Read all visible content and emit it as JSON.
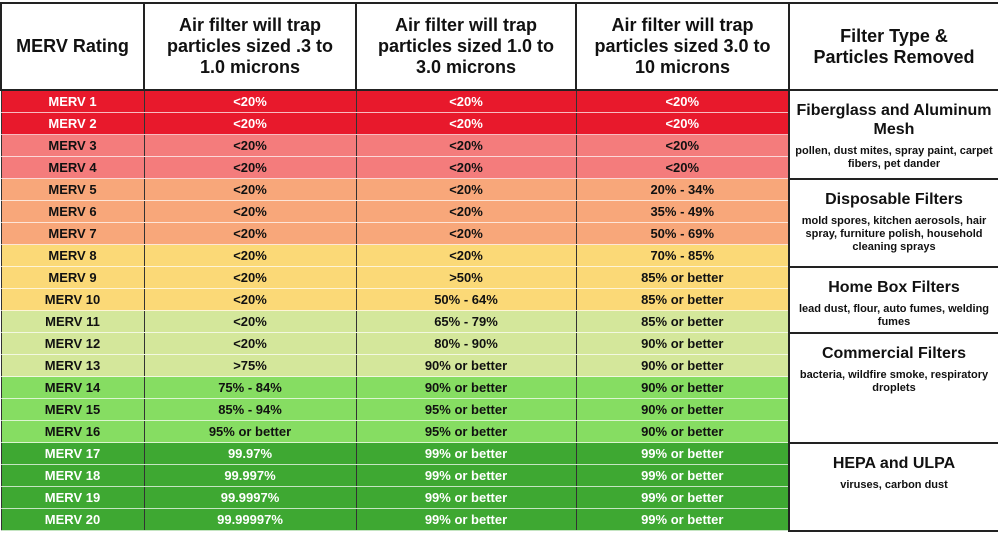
{
  "header": [
    "MERV Rating",
    "Air filter will trap particles sized .3 to 1.0 microns",
    "Air filter will trap particles sized 1.0 to 3.0 microns",
    "Air filter will trap particles sized 3.0 to 10 microns",
    "Filter Type & Particles Removed"
  ],
  "groups": [
    {
      "title": "Fiberglass and Aluminum Mesh",
      "description": "pollen, dust mites, spray paint, carpet fibers, pet dander",
      "rows": [
        {
          "color": "#e8192c",
          "text_color": "#ffffff",
          "cells": [
            "MERV 1",
            "<20%",
            "<20%",
            "<20%"
          ]
        },
        {
          "color": "#e8192c",
          "text_color": "#ffffff",
          "cells": [
            "MERV 2",
            "<20%",
            "<20%",
            "<20%"
          ]
        },
        {
          "color": "#f47c7c",
          "text_color": "#111111",
          "cells": [
            "MERV 3",
            "<20%",
            "<20%",
            "<20%"
          ]
        },
        {
          "color": "#f47c7c",
          "text_color": "#111111",
          "cells": [
            "MERV 4",
            "<20%",
            "<20%",
            "<20%"
          ]
        }
      ]
    },
    {
      "title": "Disposable Filters",
      "description": "mold spores, kitchen aerosols, hair spray, furniture polish, household cleaning sprays",
      "rows": [
        {
          "color": "#f8a77a",
          "text_color": "#111111",
          "cells": [
            "MERV 5",
            "<20%",
            "<20%",
            "20% - 34%"
          ]
        },
        {
          "color": "#f8a77a",
          "text_color": "#111111",
          "cells": [
            "MERV 6",
            "<20%",
            "<20%",
            "35% - 49%"
          ]
        },
        {
          "color": "#f8a77a",
          "text_color": "#111111",
          "cells": [
            "MERV 7",
            "<20%",
            "<20%",
            "50% - 69%"
          ]
        },
        {
          "color": "#fbd977",
          "text_color": "#111111",
          "cells": [
            "MERV 8",
            "<20%",
            "<20%",
            "70% - 85%"
          ]
        }
      ]
    },
    {
      "title": "Home Box Filters",
      "description": "lead dust, flour, auto fumes, welding fumes",
      "rows": [
        {
          "color": "#fbd977",
          "text_color": "#111111",
          "cells": [
            "MERV 9",
            "<20%",
            ">50%",
            "85% or better"
          ]
        },
        {
          "color": "#fbd977",
          "text_color": "#111111",
          "cells": [
            "MERV 10",
            "<20%",
            "50% - 64%",
            "85% or better"
          ]
        },
        {
          "color": "#d4e79b",
          "text_color": "#111111",
          "cells": [
            "MERV 11",
            "<20%",
            "65% - 79%",
            "85% or better"
          ]
        }
      ]
    },
    {
      "title": "Commercial Filters",
      "description": "bacteria, wildfire smoke, respiratory droplets",
      "rows": [
        {
          "color": "#d4e79b",
          "text_color": "#111111",
          "cells": [
            "MERV 12",
            "<20%",
            "80% - 90%",
            "90% or better"
          ]
        },
        {
          "color": "#d4e79b",
          "text_color": "#111111",
          "cells": [
            "MERV 13",
            ">75%",
            "90% or better",
            "90% or better"
          ]
        },
        {
          "color": "#86dd62",
          "text_color": "#111111",
          "cells": [
            "MERV 14",
            "75% - 84%",
            "90% or better",
            "90% or better"
          ]
        },
        {
          "color": "#86dd62",
          "text_color": "#111111",
          "cells": [
            "MERV 15",
            "85% - 94%",
            "95% or better",
            "90% or better"
          ]
        },
        {
          "color": "#86dd62",
          "text_color": "#111111",
          "cells": [
            "MERV 16",
            "95% or better",
            "95% or better",
            "90% or better"
          ]
        }
      ]
    },
    {
      "title": "HEPA and ULPA",
      "description": "viruses, carbon dust",
      "rows": [
        {
          "color": "#3ea832",
          "text_color": "#ffffff",
          "cells": [
            "MERV 17",
            "99.97%",
            "99% or better",
            "99% or better"
          ]
        },
        {
          "color": "#3ea832",
          "text_color": "#ffffff",
          "cells": [
            "MERV 18",
            "99.997%",
            "99% or better",
            "99% or better"
          ]
        },
        {
          "color": "#3ea832",
          "text_color": "#ffffff",
          "cells": [
            "MERV 19",
            "99.9997%",
            "99% or better",
            "99% or better"
          ]
        },
        {
          "color": "#3ea832",
          "text_color": "#ffffff",
          "cells": [
            "MERV 20",
            "99.99997%",
            "99% or better",
            "99% or better"
          ]
        }
      ]
    }
  ]
}
